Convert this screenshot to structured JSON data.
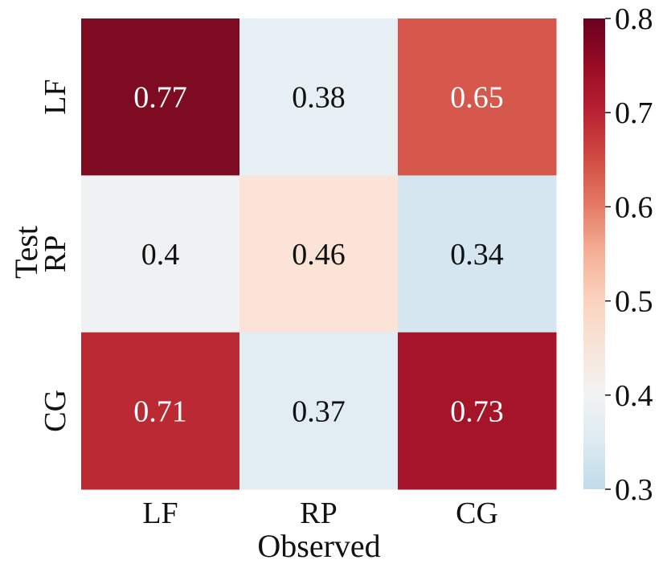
{
  "chart_data": {
    "type": "heatmap",
    "title": "",
    "xlabel": "Observed",
    "ylabel": "Test",
    "x_categories": [
      "LF",
      "RP",
      "CG"
    ],
    "y_categories": [
      "LF",
      "RP",
      "CG"
    ],
    "values": [
      [
        0.77,
        0.38,
        0.65
      ],
      [
        0.4,
        0.46,
        0.34
      ],
      [
        0.71,
        0.37,
        0.73
      ]
    ],
    "value_labels": [
      [
        "0.77",
        "0.38",
        "0.65"
      ],
      [
        "0.4",
        "0.46",
        "0.34"
      ],
      [
        "0.71",
        "0.37",
        "0.73"
      ]
    ],
    "colorbar": {
      "vmin": 0.3,
      "vmax": 0.8,
      "ticks": [
        0.3,
        0.4,
        0.5,
        0.6,
        0.7,
        0.8
      ],
      "tick_labels": [
        "0.3",
        "0.4",
        "0.5",
        "0.6",
        "0.7",
        "0.8"
      ],
      "colormap": "RdBu_r"
    },
    "colors": {
      "0.77": "#7d0c22",
      "0.38": "#e6eff3",
      "0.65": "#d6574b",
      "0.4": "#eff1f2",
      "0.46": "#fbe4d7",
      "0.34": "#d5e6f0",
      "0.71": "#bb2a33",
      "0.37": "#e1edf3",
      "0.73": "#a51429"
    }
  }
}
